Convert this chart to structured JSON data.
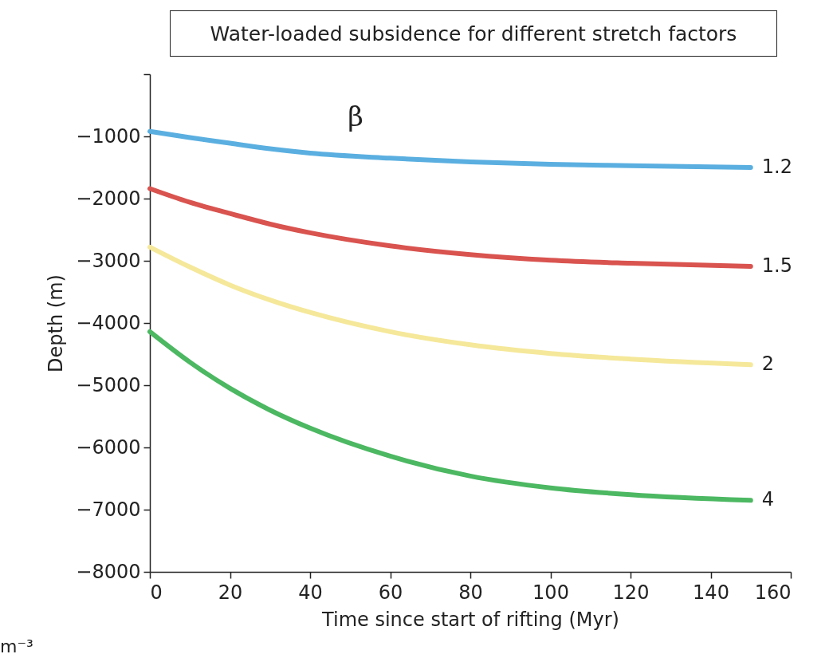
{
  "chart_data": {
    "type": "line",
    "title": "Water-loaded subsidence for different stretch factors",
    "xlabel": "Time since start of rifting (Myr)",
    "ylabel": "Depth (m)",
    "x": [
      0,
      10,
      20,
      30,
      40,
      60,
      80,
      100,
      120,
      150
    ],
    "series": [
      {
        "name": "1.2",
        "color": "#5aafe0",
        "values": [
          -920,
          -1020,
          -1110,
          -1200,
          -1270,
          -1350,
          -1410,
          -1450,
          -1470,
          -1500
        ]
      },
      {
        "name": "1.5",
        "color": "#d9534f",
        "values": [
          -1840,
          -2060,
          -2240,
          -2410,
          -2550,
          -2760,
          -2900,
          -2990,
          -3040,
          -3090
        ]
      },
      {
        "name": "2",
        "color": "#f5e89a",
        "values": [
          -2780,
          -3100,
          -3390,
          -3630,
          -3830,
          -4140,
          -4350,
          -4490,
          -4580,
          -4670
        ]
      },
      {
        "name": "4",
        "color": "#4cb862",
        "values": [
          -4140,
          -4630,
          -5050,
          -5400,
          -5690,
          -6140,
          -6460,
          -6650,
          -6760,
          -6850
        ]
      }
    ],
    "xlim": [
      0,
      160
    ],
    "xticks": [
      0,
      20,
      40,
      60,
      80,
      100,
      120,
      140,
      160
    ],
    "ylim": [
      -8000,
      0
    ],
    "yticks": [
      -8000,
      -7000,
      -6000,
      -5000,
      -4000,
      -3000,
      -2000,
      -1000,
      {
        "value": 0,
        "label": null
      }
    ],
    "marker": "none",
    "line_style": "solid",
    "annotations": [
      "β",
      "m⁻³"
    ]
  }
}
